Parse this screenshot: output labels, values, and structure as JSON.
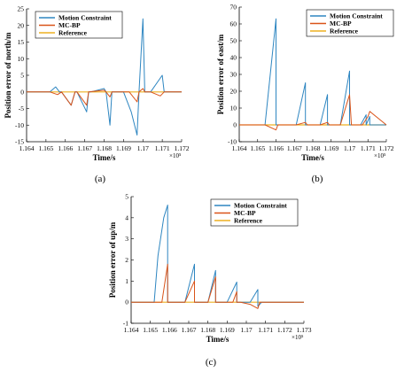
{
  "colors": {
    "motion": "#2e86c1",
    "mcbp": "#d95319",
    "reference": "#edb120"
  },
  "chart_data": [
    {
      "type": "line",
      "panel_label": "(a)",
      "xlabel": "Time/s",
      "ylabel": "Position error of north/m",
      "x_exponent": "×10⁵",
      "xlim": [
        1.164,
        1.172
      ],
      "ylim": [
        -15,
        25
      ],
      "xticks": [
        "1.164",
        "1.165",
        "1.166",
        "1.167",
        "1.168",
        "1.169",
        "1.17",
        "1.171",
        "1.172"
      ],
      "yticks": [
        "-15",
        "-10",
        "-5",
        "0",
        "5",
        "10",
        "15",
        "20",
        "25"
      ],
      "legend": [
        "Motion Constraint",
        "MC-BP",
        "Reference"
      ],
      "series": [
        {
          "name": "Motion Constraint",
          "x": [
            1.164,
            1.1652,
            1.1655,
            1.1657,
            1.1658,
            1.1663,
            1.1665,
            1.1665,
            1.1666,
            1.1671,
            1.1672,
            1.1672,
            1.1673,
            1.168,
            1.1681,
            1.1683,
            1.1684,
            1.169,
            1.1694,
            1.1697,
            1.1698,
            1.1698,
            1.17,
            1.1701,
            1.1704,
            1.171,
            1.1711,
            1.1712,
            1.172
          ],
          "y": [
            0,
            0,
            1.5,
            0,
            0,
            -4,
            0,
            0,
            0,
            -6,
            0,
            0,
            0,
            1,
            0,
            -10,
            0,
            0,
            -6,
            -13,
            0,
            0,
            22,
            0,
            0,
            5,
            0,
            0,
            0
          ]
        },
        {
          "name": "MC-BP",
          "x": [
            1.164,
            1.1652,
            1.1656,
            1.1658,
            1.1663,
            1.1665,
            1.1666,
            1.1671,
            1.1672,
            1.168,
            1.1681,
            1.1683,
            1.1684,
            1.1693,
            1.1697,
            1.1698,
            1.17,
            1.1701,
            1.1704,
            1.1709,
            1.1711,
            1.172
          ],
          "y": [
            0,
            0,
            -0.8,
            0,
            -4,
            0,
            0,
            -4,
            0,
            0.5,
            0,
            -1.5,
            0,
            0,
            -3,
            0,
            1,
            0,
            0,
            -1.2,
            0,
            0
          ]
        },
        {
          "name": "Reference",
          "x": [
            1.164,
            1.172
          ],
          "y": [
            0,
            0
          ]
        }
      ]
    },
    {
      "type": "line",
      "panel_label": "(b)",
      "xlabel": "Time/s",
      "ylabel": "Position error of east/m",
      "x_exponent": "×10⁵",
      "xlim": [
        1.164,
        1.172
      ],
      "ylim": [
        -10,
        70
      ],
      "xticks": [
        "1.164",
        "1.165",
        "1.166",
        "1.167",
        "1.168",
        "1.169",
        "1.17",
        "1.171",
        "1.172"
      ],
      "yticks": [
        "-10",
        "0",
        "10",
        "20",
        "30",
        "40",
        "50",
        "60",
        "70"
      ],
      "legend": [
        "Motion Constraint",
        "MC-BP",
        "Reference"
      ],
      "series": [
        {
          "name": "Motion Constraint",
          "x": [
            1.164,
            1.1654,
            1.166,
            1.166,
            1.1661,
            1.1671,
            1.1676,
            1.1676,
            1.1677,
            1.1684,
            1.1688,
            1.1688,
            1.1689,
            1.1695,
            1.17,
            1.17,
            1.1701,
            1.1706,
            1.1709,
            1.1709,
            1.1711,
            1.1711,
            1.172
          ],
          "y": [
            0,
            0,
            63,
            0,
            0,
            0,
            25,
            0,
            0,
            0,
            18,
            0,
            0,
            0,
            32,
            0,
            0,
            0,
            6,
            0,
            5,
            0,
            0
          ]
        },
        {
          "name": "MC-BP",
          "x": [
            1.164,
            1.1654,
            1.166,
            1.1661,
            1.1671,
            1.1676,
            1.1677,
            1.1684,
            1.1688,
            1.1689,
            1.1695,
            1.17,
            1.1701,
            1.1707,
            1.171,
            1.1711,
            1.172
          ],
          "y": [
            0,
            0,
            -3,
            0,
            0,
            1.5,
            0,
            0,
            1.5,
            0,
            0,
            18,
            0,
            0,
            5,
            8,
            0
          ]
        },
        {
          "name": "Reference",
          "x": [
            1.164,
            1.172
          ],
          "y": [
            0,
            0
          ]
        }
      ]
    },
    {
      "type": "line",
      "panel_label": "(c)",
      "xlabel": "Time/s",
      "ylabel": "Position error of up/m",
      "x_exponent": "×10⁵",
      "xlim": [
        1.164,
        1.173
      ],
      "ylim": [
        -1,
        5
      ],
      "xticks": [
        "1.164",
        "1.165",
        "1.166",
        "1.167",
        "1.168",
        "1.169",
        "1.17",
        "1.171",
        "1.172",
        "1.173"
      ],
      "yticks": [
        "-1",
        "0",
        "1",
        "2",
        "3",
        "4",
        "5"
      ],
      "legend": [
        "Motion Constraint",
        "MC-BP",
        "Reference"
      ],
      "series": [
        {
          "name": "Motion Constraint",
          "x": [
            1.164,
            1.1652,
            1.1654,
            1.1657,
            1.1659,
            1.1659,
            1.1661,
            1.1668,
            1.1673,
            1.1673,
            1.1675,
            1.168,
            1.1684,
            1.1684,
            1.1686,
            1.169,
            1.1695,
            1.1695,
            1.1697,
            1.1702,
            1.1706,
            1.1706,
            1.1708,
            1.173
          ],
          "y": [
            0,
            0,
            2.2,
            4.0,
            4.6,
            0,
            0,
            0,
            1.8,
            0,
            0,
            0,
            1.5,
            0,
            0,
            0,
            0.95,
            0,
            0,
            0,
            0.6,
            -0.2,
            0,
            0
          ]
        },
        {
          "name": "MC-BP",
          "x": [
            1.164,
            1.1656,
            1.1659,
            1.1659,
            1.1661,
            1.1668,
            1.1673,
            1.1673,
            1.1675,
            1.168,
            1.1684,
            1.1684,
            1.1686,
            1.1693,
            1.1695,
            1.1695,
            1.1697,
            1.1702,
            1.1706,
            1.1707,
            1.1708,
            1.173
          ],
          "y": [
            0,
            0,
            1.8,
            0,
            0,
            0,
            1.0,
            0,
            0,
            0,
            1.2,
            0,
            0,
            0,
            0.5,
            0,
            0,
            -0.1,
            -0.3,
            0,
            0,
            0
          ]
        },
        {
          "name": "Reference",
          "x": [
            1.164,
            1.173
          ],
          "y": [
            0,
            0
          ]
        }
      ]
    }
  ]
}
